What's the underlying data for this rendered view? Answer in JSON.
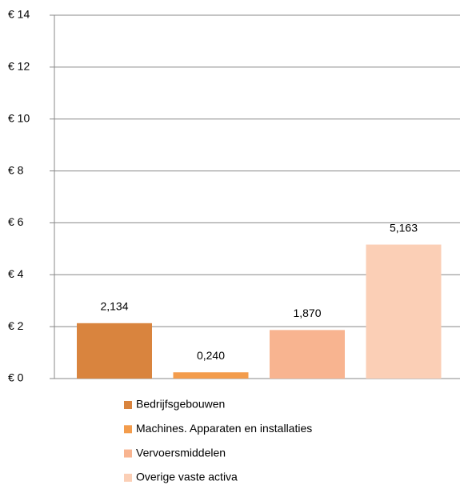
{
  "chart_data": {
    "type": "bar",
    "series": [
      {
        "name": "Bedrijfsgebouwen",
        "color": "#d9843e",
        "values": [
          2.134
        ],
        "value_labels": [
          "2,134"
        ]
      },
      {
        "name": "Machines. Apparaten en installaties",
        "color": "#f39c4c",
        "values": [
          0.24
        ],
        "value_labels": [
          "0,240"
        ]
      },
      {
        "name": "Vervoersmiddelen",
        "color": "#f8b490",
        "values": [
          1.87
        ],
        "value_labels": [
          "1,870"
        ]
      },
      {
        "name": "Overige vaste activa",
        "color": "#fbcfb6",
        "values": [
          5.163
        ],
        "value_labels": [
          "5,163"
        ]
      }
    ],
    "ylim": [
      0,
      14
    ],
    "yticks": [
      {
        "value": 0,
        "label": "€ 0"
      },
      {
        "value": 2,
        "label": "€ 2"
      },
      {
        "value": 4,
        "label": "€ 4"
      },
      {
        "value": 6,
        "label": "€ 6"
      },
      {
        "value": 8,
        "label": "€ 8"
      },
      {
        "value": 10,
        "label": "€ 10"
      },
      {
        "value": 12,
        "label": "€ 12"
      },
      {
        "value": 14,
        "label": "€ 14"
      }
    ],
    "grid": true,
    "legend": "bottom"
  }
}
